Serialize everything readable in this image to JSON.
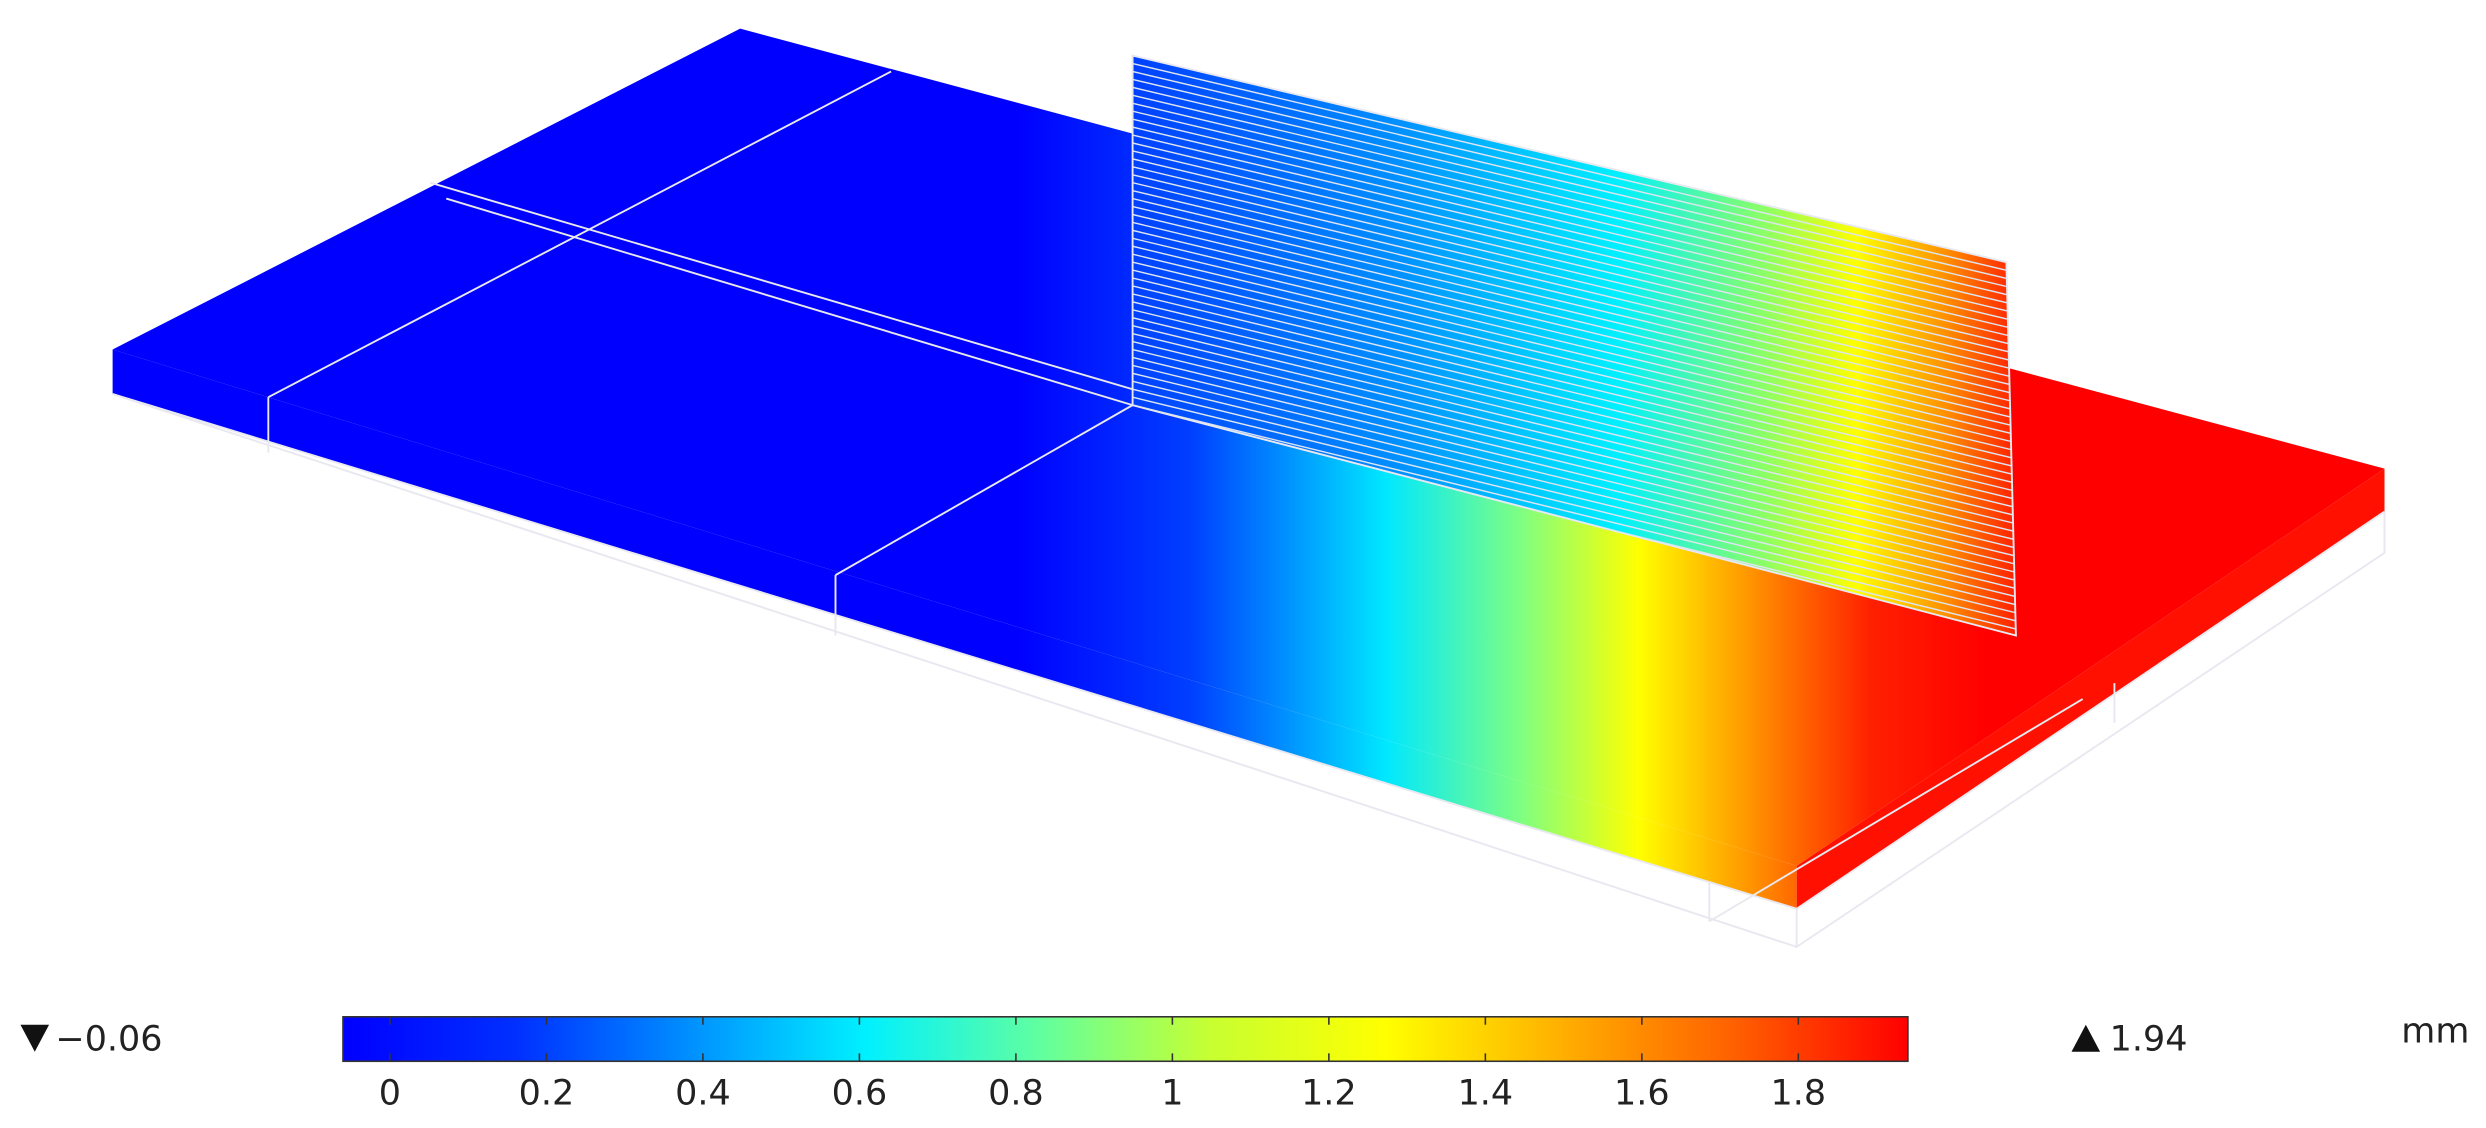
{
  "chart_data": {
    "type": "colorbar",
    "unit": "mm",
    "xlim": [
      -0.06,
      1.94
    ],
    "xticks": [
      0,
      0.2,
      0.4,
      0.6,
      0.8,
      1,
      1.2,
      1.4,
      1.6,
      1.8
    ],
    "min": {
      "value": -0.06,
      "label": "−0.06"
    },
    "max": 1.94,
    "colormap": [
      "#0000ff",
      "#0030ff",
      "#0090ff",
      "#00f0ff",
      "#60ffa0",
      "#c8ff30",
      "#ffff00",
      "#ffb000",
      "#ff6000",
      "#ff0000"
    ]
  }
}
